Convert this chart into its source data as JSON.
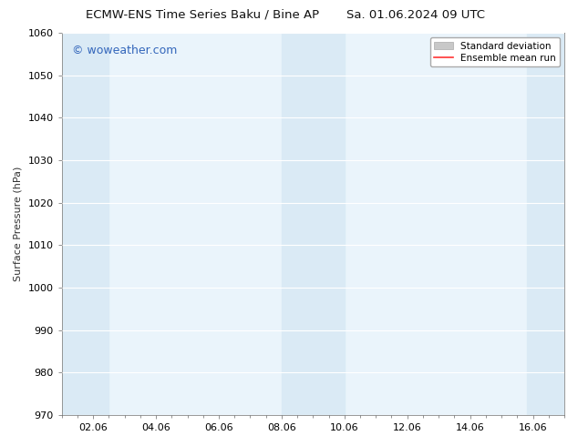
{
  "title_left": "ECMW-ENS Time Series Baku / Bine AP",
  "title_right": "Sa. 01.06.2024 09 UTC",
  "ylabel": "Surface Pressure (hPa)",
  "ylim": [
    970,
    1060
  ],
  "yticks": [
    970,
    980,
    990,
    1000,
    1010,
    1020,
    1030,
    1040,
    1050,
    1060
  ],
  "xlim": [
    0,
    16
  ],
  "xtick_labels": [
    "02.06",
    "04.06",
    "06.06",
    "08.06",
    "10.06",
    "12.06",
    "14.06",
    "16.06"
  ],
  "xtick_positions": [
    1,
    3,
    5,
    7,
    9,
    11,
    13,
    15
  ],
  "shaded_bands": [
    {
      "x_start": 0.0,
      "x_end": 1.5,
      "color": "#daeaf5"
    },
    {
      "x_start": 7.0,
      "x_end": 9.0,
      "color": "#daeaf5"
    },
    {
      "x_start": 14.8,
      "x_end": 16.0,
      "color": "#daeaf5"
    }
  ],
  "plot_bg_color": "#eaf4fb",
  "background_color": "#ffffff",
  "grid_color": "#ffffff",
  "watermark_text": "© woweather.com",
  "watermark_color": "#3366bb",
  "legend_entries": [
    "Standard deviation",
    "Ensemble mean run"
  ],
  "legend_patch_color": "#c8c8c8",
  "legend_line_color": "#ff3333",
  "title_fontsize": 9.5,
  "label_fontsize": 8,
  "tick_fontsize": 8,
  "watermark_fontsize": 9
}
